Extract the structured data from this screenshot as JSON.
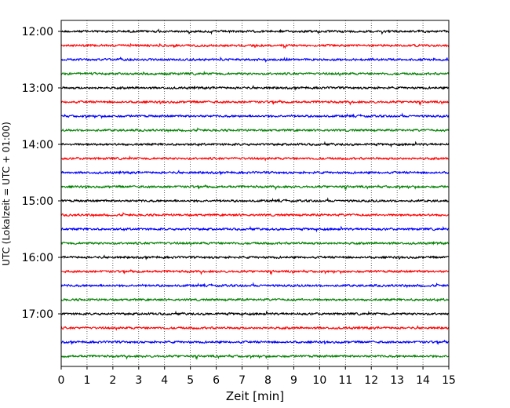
{
  "chart_data": {
    "type": "line",
    "title": "",
    "xlabel": "Zeit  [min]",
    "ylabel": "UTC (Lokalzeit = UTC + 01:00)",
    "xlim": [
      0,
      15
    ],
    "x_ticks": [
      "0",
      "1",
      "2",
      "3",
      "4",
      "5",
      "6",
      "7",
      "8",
      "9",
      "10",
      "11",
      "12",
      "13",
      "14",
      "15"
    ],
    "y_ticks": [
      "12:00",
      "13:00",
      "14:00",
      "15:00",
      "16:00",
      "17:00"
    ],
    "trace_interval_minutes": 15,
    "first_trace": "12:00",
    "last_trace": "17:45",
    "trace_count": 24,
    "trace_colors": [
      "#000000",
      "#ff0000",
      "#0000ff",
      "#008000"
    ],
    "grid_x": true,
    "grid_y": false
  }
}
